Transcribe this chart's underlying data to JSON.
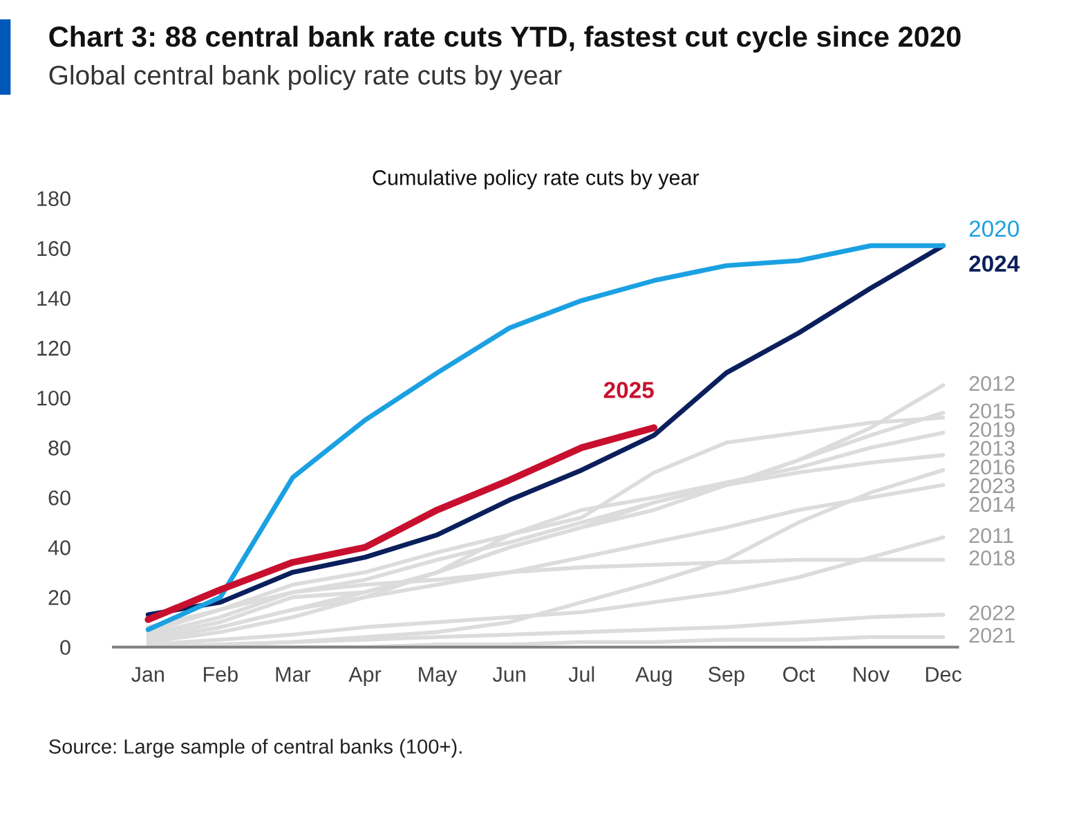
{
  "chart_data": {
    "type": "line",
    "title": "Chart 3: 88 central bank rate cuts YTD, fastest cut cycle since 2020",
    "subtitle": "Global central bank policy rate cuts by year",
    "annotations": [
      "Cumulative policy rate cuts by year",
      "Source: Large sample of central banks (100+)."
    ],
    "categories": [
      "Jan",
      "Feb",
      "Mar",
      "Apr",
      "May",
      "Jun",
      "Jul",
      "Aug",
      "Sep",
      "Oct",
      "Nov",
      "Dec"
    ],
    "ylim": [
      0,
      180
    ],
    "yticks": [
      0,
      20,
      40,
      60,
      80,
      100,
      120,
      140,
      160,
      180
    ],
    "grid": false,
    "legend": false,
    "marker": "none",
    "line_style": "solid",
    "series": [
      {
        "name": "2012",
        "color": "#dcdcdc",
        "values": [
          5,
          12,
          22,
          27,
          35,
          42,
          50,
          58,
          65,
          75,
          88,
          105
        ]
      },
      {
        "name": "2015",
        "color": "#dcdcdc",
        "values": [
          3,
          8,
          15,
          22,
          30,
          40,
          48,
          55,
          65,
          75,
          85,
          94
        ]
      },
      {
        "name": "2019",
        "color": "#dcdcdc",
        "values": [
          2,
          6,
          12,
          20,
          30,
          45,
          52,
          70,
          82,
          86,
          90,
          92
        ]
      },
      {
        "name": "2013",
        "color": "#dcdcdc",
        "values": [
          6,
          15,
          25,
          30,
          38,
          45,
          55,
          60,
          66,
          72,
          80,
          86
        ]
      },
      {
        "name": "2016",
        "color": "#dcdcdc",
        "values": [
          4,
          10,
          20,
          22,
          30,
          40,
          48,
          58,
          65,
          70,
          74,
          77
        ]
      },
      {
        "name": "2023",
        "color": "#dcdcdc",
        "values": [
          0,
          1,
          2,
          4,
          6,
          10,
          18,
          26,
          35,
          50,
          62,
          71
        ]
      },
      {
        "name": "2014",
        "color": "#dcdcdc",
        "values": [
          3,
          8,
          15,
          20,
          25,
          30,
          36,
          42,
          48,
          55,
          60,
          65
        ]
      },
      {
        "name": "2011",
        "color": "#dcdcdc",
        "values": [
          1,
          3,
          5,
          8,
          10,
          12,
          14,
          18,
          22,
          28,
          36,
          44
        ]
      },
      {
        "name": "2018",
        "color": "#dcdcdc",
        "values": [
          8,
          15,
          22,
          25,
          27,
          30,
          32,
          33,
          34,
          35,
          35,
          35
        ]
      },
      {
        "name": "2022",
        "color": "#dcdcdc",
        "values": [
          0,
          1,
          2,
          3,
          4,
          5,
          6,
          7,
          8,
          10,
          12,
          13
        ]
      },
      {
        "name": "2021",
        "color": "#dcdcdc",
        "values": [
          0,
          0,
          0,
          0,
          1,
          1,
          2,
          2,
          3,
          3,
          4,
          4
        ]
      },
      {
        "name": "2024",
        "color": "#0a1f5c",
        "values": [
          13,
          18,
          30,
          36,
          45,
          59,
          71,
          85,
          110,
          126,
          144,
          161
        ]
      },
      {
        "name": "2020",
        "color": "#1ba1e2",
        "values": [
          7,
          20,
          68,
          91,
          110,
          128,
          139,
          147,
          153,
          155,
          161,
          161
        ]
      },
      {
        "name": "2025",
        "color": "#c8102e",
        "values": [
          11,
          23,
          34,
          40,
          55,
          67,
          80,
          88,
          null,
          null,
          null,
          null
        ]
      }
    ]
  }
}
